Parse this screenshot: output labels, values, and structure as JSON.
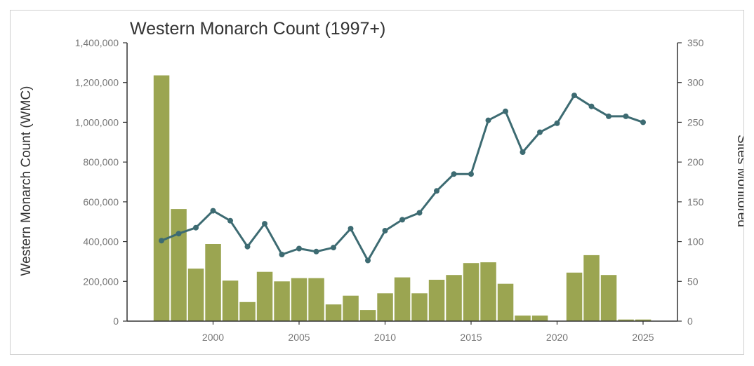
{
  "chart_data": {
    "type": "bar+line",
    "title": "Western Monarch Count (1997+)",
    "ylabel_left": "Western Monarch Count (WMC)",
    "ylabel_right": "Sites Monitored",
    "xlim": [
      1995,
      2027
    ],
    "ylim_left": [
      0,
      1400000
    ],
    "ylim_right": [
      0,
      350
    ],
    "xticks": [
      "2000",
      "2005",
      "2010",
      "2015",
      "2020",
      "2025"
    ],
    "yticks_left": [
      "0",
      "200,000",
      "400,000",
      "600,000",
      "800,000",
      "1,000,000",
      "1,200,000",
      "1,400,000"
    ],
    "yticks_right": [
      "0",
      "50",
      "100",
      "150",
      "200",
      "250",
      "300",
      "350"
    ],
    "grid": false,
    "legend": "none",
    "bar_series": {
      "axis": "right",
      "color": "#9ba551",
      "x": [
        1997,
        1998,
        1999,
        2000,
        2001,
        2002,
        2003,
        2004,
        2005,
        2006,
        2007,
        2008,
        2009,
        2010,
        2011,
        2012,
        2013,
        2014,
        2015,
        2016,
        2017,
        2018,
        2019,
        2020,
        2021,
        2022,
        2023,
        2024,
        2025
      ],
      "values": [
        309,
        141,
        66,
        97,
        51,
        24,
        62,
        50,
        54,
        54,
        21,
        32,
        14,
        35,
        55,
        35,
        52,
        58,
        73,
        74,
        47,
        7,
        7,
        0,
        61,
        83,
        58,
        2,
        2
      ]
    },
    "line_series": {
      "axis": "left",
      "color": "#3d6b72",
      "x": [
        1997,
        1998,
        1999,
        2000,
        2001,
        2002,
        2003,
        2004,
        2005,
        2006,
        2007,
        2008,
        2009,
        2010,
        2011,
        2012,
        2013,
        2014,
        2015,
        2016,
        2017,
        2018,
        2019,
        2020,
        2021,
        2022,
        2023,
        2024,
        2025
      ],
      "values": [
        405000,
        440000,
        470000,
        555000,
        505000,
        375000,
        490000,
        335000,
        365000,
        350000,
        370000,
        465000,
        305000,
        455000,
        510000,
        545000,
        655000,
        740000,
        740000,
        1010000,
        1055000,
        850000,
        950000,
        995000,
        1135000,
        1080000,
        1030000,
        1030000,
        1000000
      ]
    }
  }
}
